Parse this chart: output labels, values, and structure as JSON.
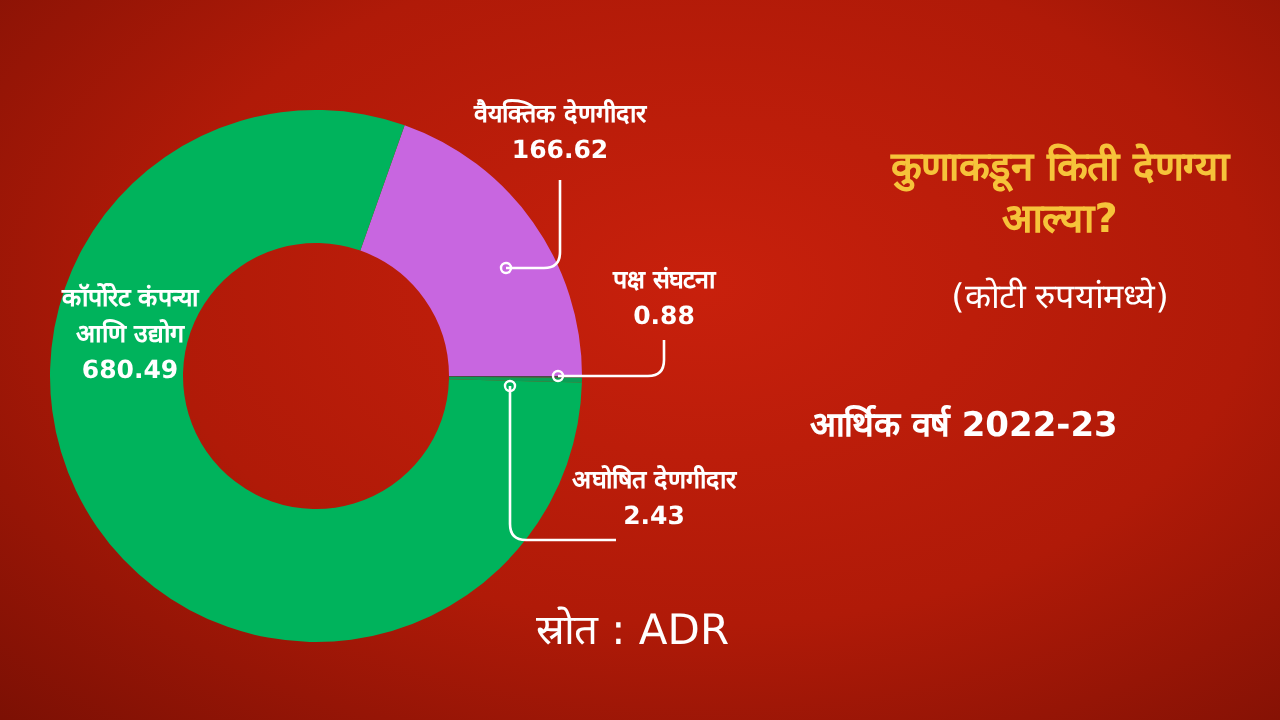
{
  "chart_data": {
    "type": "donut",
    "title": "कुणाकडून किती देणग्या आल्या?",
    "subtitle": "(कोटी रुपयांमध्ये)",
    "annotations": [
      "आर्थिक वर्ष 2022-23",
      "स्रोत : ADR"
    ],
    "categories": [
      "वैयक्तिक देणगीदार",
      "पक्ष संघटना",
      "अघोषित देणगीदार",
      "कॉर्पोरेट कंपन्या आणि उद्योग"
    ],
    "values": [
      166.62,
      0.88,
      2.43,
      680.49
    ],
    "colors": [
      "#c866e0",
      "#4a4a4a",
      "#0a9e55",
      "#00b35c"
    ],
    "data_labels": true,
    "legend": false
  }
}
